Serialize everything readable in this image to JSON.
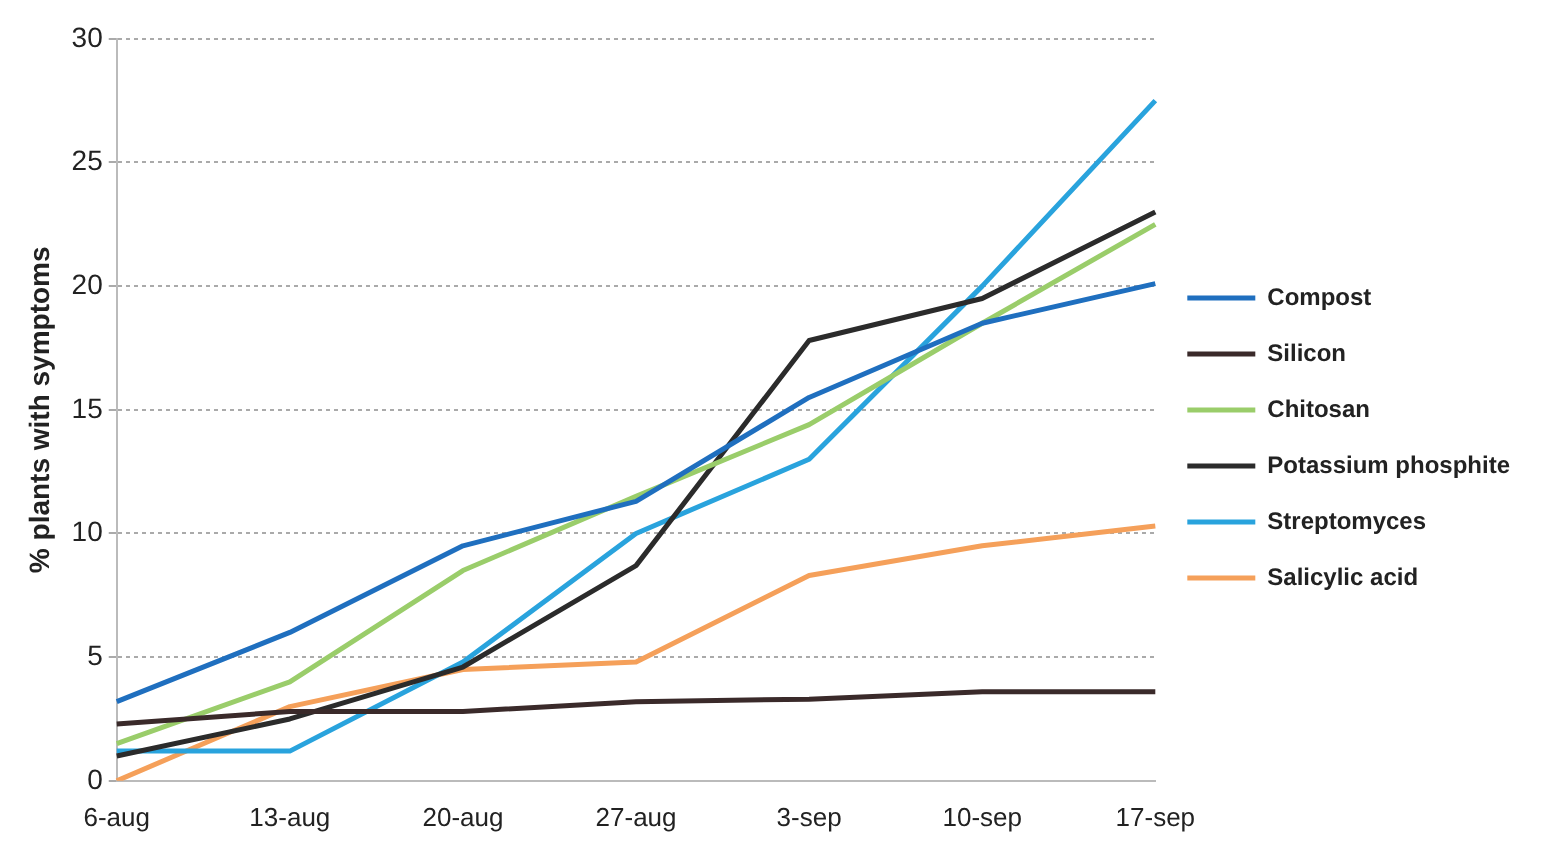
{
  "chart_data": {
    "type": "line",
    "ylabel": "% plants with symptoms",
    "categories": [
      "6-aug",
      "13-aug",
      "20-aug",
      "27-aug",
      "3-sep",
      "10-sep",
      "17-sep"
    ],
    "series": [
      {
        "name": "Compost",
        "color": "#1f6fbf",
        "values": [
          3.2,
          6,
          9.5,
          11.3,
          15.5,
          18.5,
          20.1
        ]
      },
      {
        "name": "Silicon",
        "color": "#3a2a2a",
        "values": [
          2.3,
          2.8,
          2.8,
          3.2,
          3.3,
          3.6,
          3.6
        ]
      },
      {
        "name": "Chitosan",
        "color": "#9acd6a",
        "values": [
          1.5,
          4,
          8.5,
          11.5,
          14.4,
          18.5,
          22.5
        ]
      },
      {
        "name": "Potassium phosphite",
        "color": "#2b2b2b",
        "values": [
          1,
          2.5,
          4.6,
          8.7,
          17.8,
          19.5,
          23
        ]
      },
      {
        "name": "Streptomyces",
        "color": "#29a3dd",
        "values": [
          1.2,
          1.2,
          4.8,
          10,
          13,
          20,
          27.5
        ]
      },
      {
        "name": "Salicylic acid",
        "color": "#f5a05a",
        "values": [
          0,
          3,
          4.5,
          4.8,
          8.3,
          9.5,
          10.3
        ]
      }
    ],
    "ylim": [
      0,
      30
    ],
    "yticks": [
      0,
      5,
      10,
      15,
      20,
      25,
      30
    ],
    "grid": "y",
    "legend": "right",
    "marker": "none",
    "line_style": "solid"
  }
}
